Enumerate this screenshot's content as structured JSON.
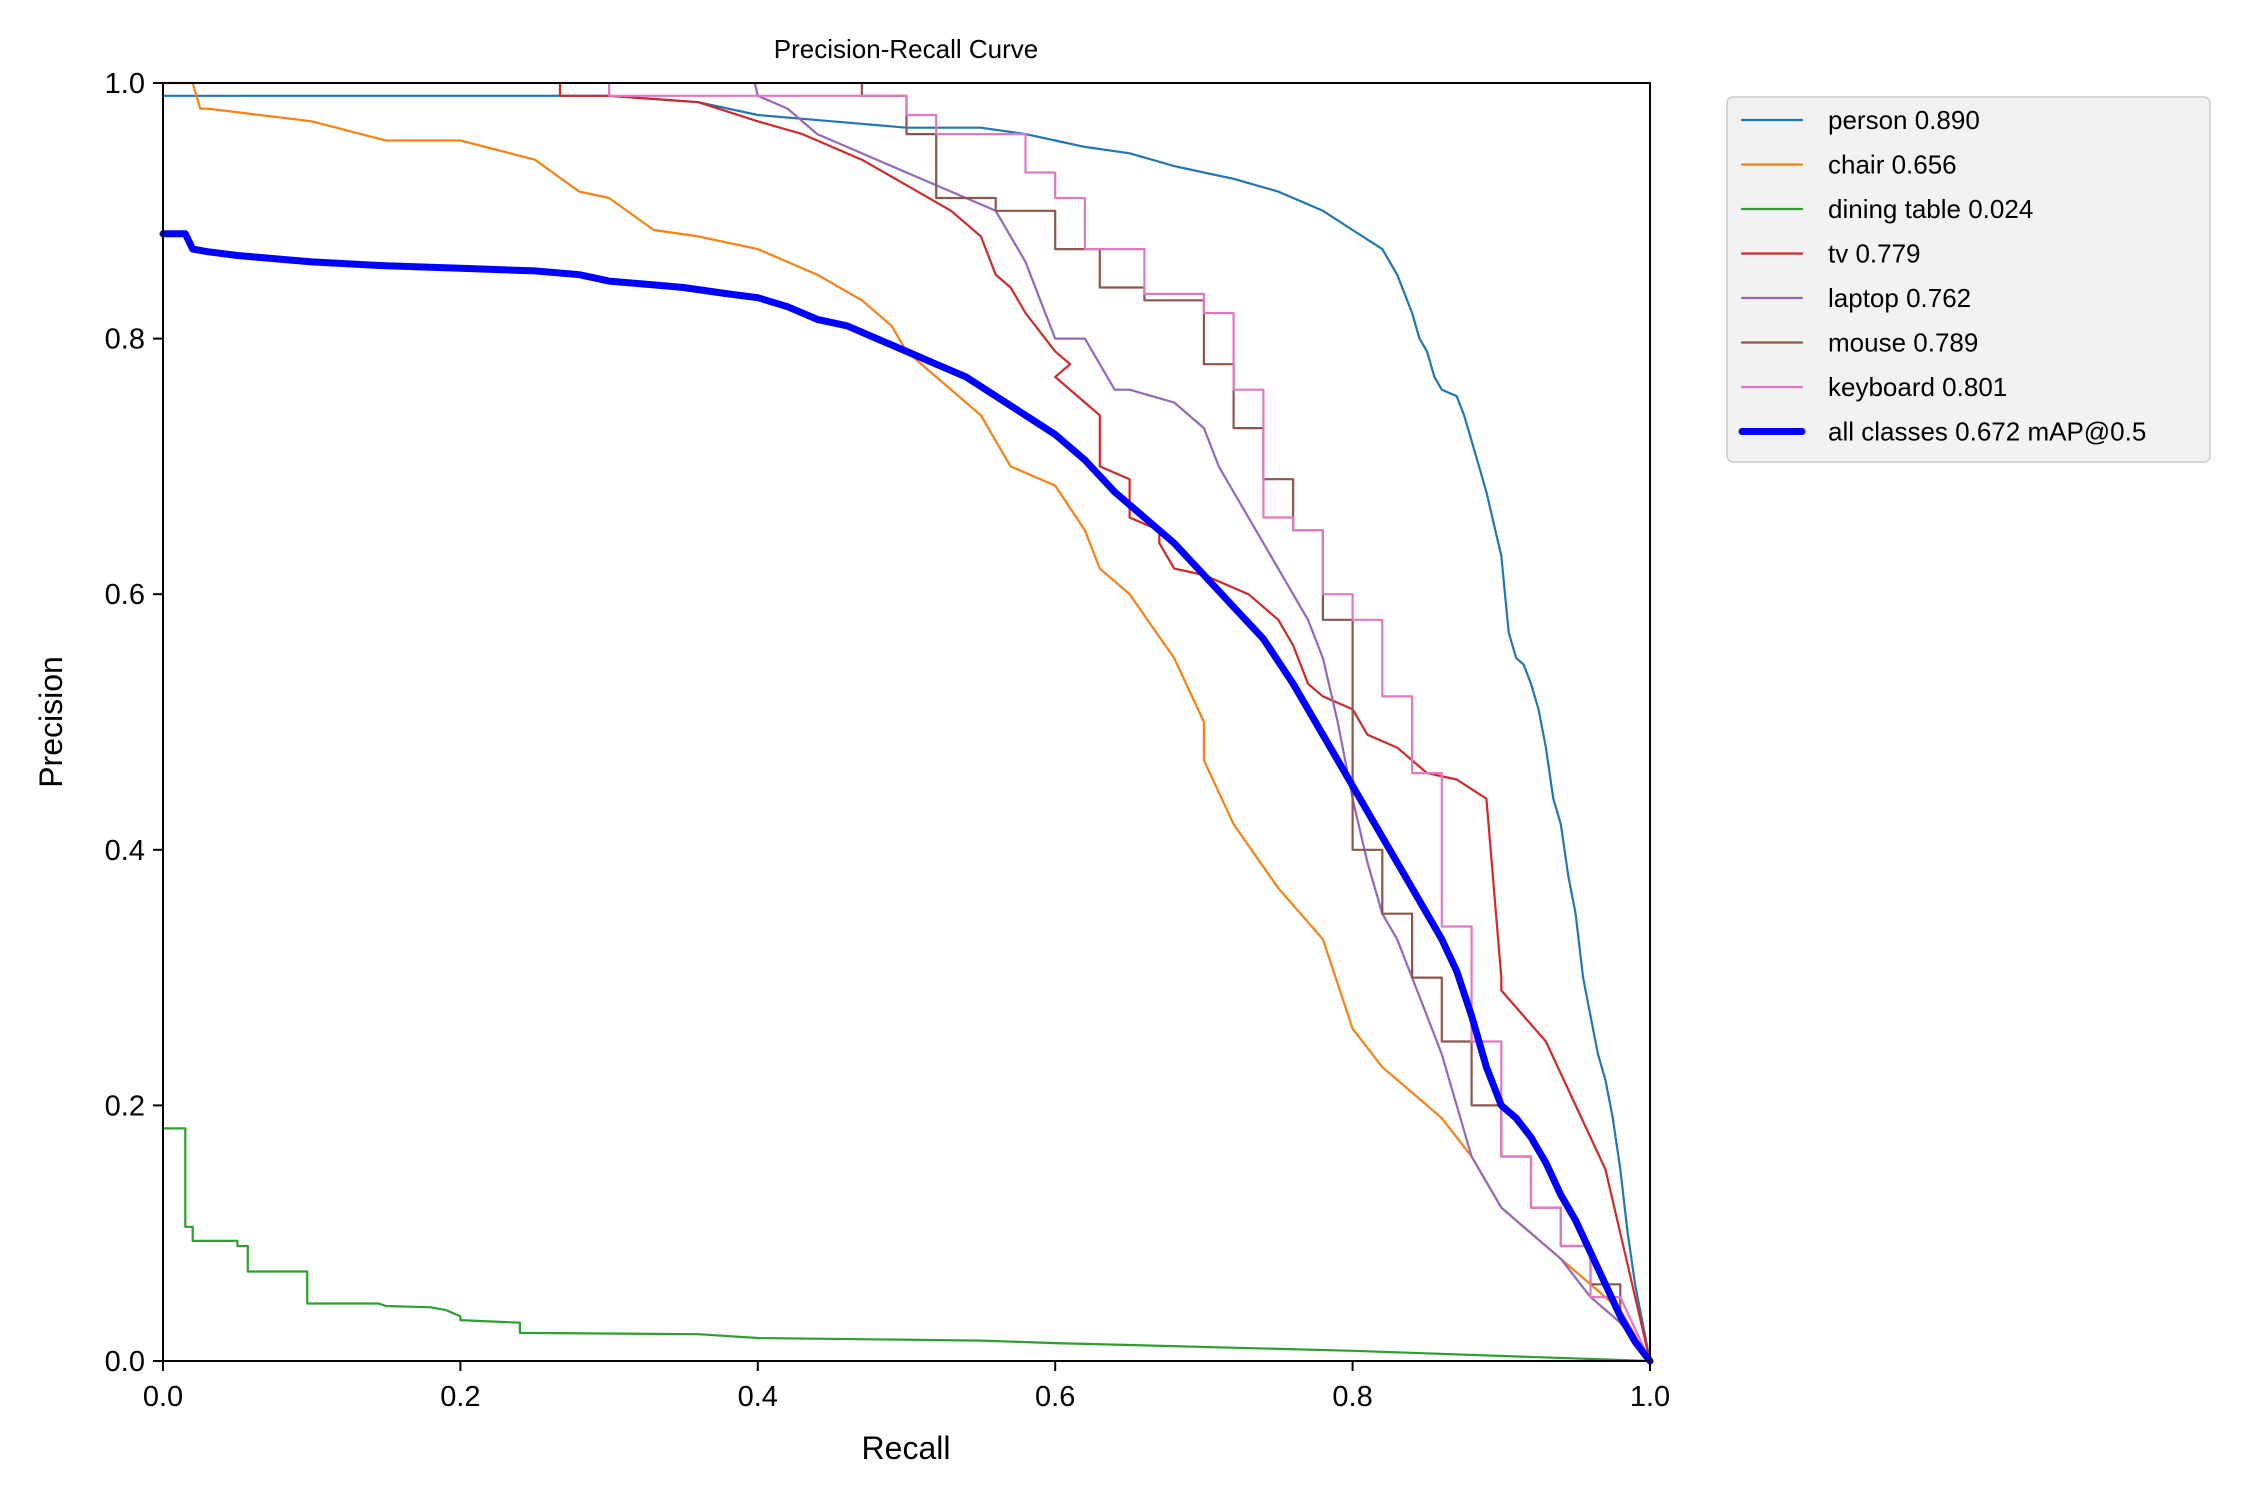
{
  "chart_data": {
    "type": "line",
    "title": "Precision-Recall Curve",
    "xlabel": "Recall",
    "ylabel": "Precision",
    "xlim": [
      0.0,
      1.0
    ],
    "ylim": [
      0.0,
      1.0
    ],
    "xticks": [
      "0.0",
      "0.2",
      "0.4",
      "0.6",
      "0.8",
      "1.0"
    ],
    "yticks": [
      "0.0",
      "0.2",
      "0.4",
      "0.6",
      "0.8",
      "1.0"
    ],
    "grid": false,
    "legend_position": "outside-top-right",
    "series": [
      {
        "name": "person 0.890",
        "color": "#1f77b4",
        "bold": false,
        "x": [
          0.0,
          0.05,
          0.2,
          0.3,
          0.36,
          0.4,
          0.45,
          0.5,
          0.55,
          0.58,
          0.6,
          0.62,
          0.65,
          0.68,
          0.7,
          0.72,
          0.75,
          0.78,
          0.8,
          0.82,
          0.83,
          0.84,
          0.845,
          0.85,
          0.855,
          0.86,
          0.87,
          0.875,
          0.88,
          0.89,
          0.9,
          0.905,
          0.91,
          0.915,
          0.92,
          0.925,
          0.93,
          0.935,
          0.94,
          0.945,
          0.95,
          0.955,
          0.96,
          0.965,
          0.97,
          0.975,
          0.98,
          0.985,
          0.99,
          1.0
        ],
        "y": [
          0.99,
          0.99,
          0.99,
          0.99,
          0.985,
          0.975,
          0.97,
          0.965,
          0.965,
          0.96,
          0.955,
          0.95,
          0.945,
          0.935,
          0.93,
          0.925,
          0.915,
          0.9,
          0.885,
          0.87,
          0.85,
          0.82,
          0.8,
          0.79,
          0.77,
          0.76,
          0.755,
          0.74,
          0.72,
          0.68,
          0.63,
          0.57,
          0.55,
          0.545,
          0.53,
          0.51,
          0.48,
          0.44,
          0.42,
          0.38,
          0.35,
          0.3,
          0.27,
          0.24,
          0.22,
          0.19,
          0.15,
          0.1,
          0.06,
          0.0
        ]
      },
      {
        "name": "chair 0.656",
        "color": "#ff7f0e",
        "bold": false,
        "x": [
          0.0,
          0.02,
          0.025,
          0.03,
          0.1,
          0.15,
          0.2,
          0.25,
          0.28,
          0.3,
          0.33,
          0.36,
          0.4,
          0.44,
          0.47,
          0.49,
          0.5,
          0.52,
          0.55,
          0.57,
          0.6,
          0.62,
          0.63,
          0.65,
          0.68,
          0.7,
          0.7,
          0.72,
          0.75,
          0.78,
          0.8,
          0.82,
          0.84,
          0.86,
          0.88,
          0.9,
          0.92,
          0.94,
          0.96,
          0.98,
          1.0
        ],
        "y": [
          1.0,
          1.0,
          0.98,
          0.98,
          0.97,
          0.955,
          0.955,
          0.94,
          0.915,
          0.91,
          0.885,
          0.88,
          0.87,
          0.85,
          0.83,
          0.81,
          0.79,
          0.77,
          0.74,
          0.7,
          0.685,
          0.65,
          0.62,
          0.6,
          0.55,
          0.5,
          0.47,
          0.42,
          0.37,
          0.33,
          0.26,
          0.23,
          0.21,
          0.19,
          0.16,
          0.12,
          0.1,
          0.08,
          0.06,
          0.04,
          0.0
        ]
      },
      {
        "name": "dining table 0.024",
        "color": "#2ca02c",
        "bold": false,
        "x": [
          0.0,
          0.015,
          0.015,
          0.02,
          0.02,
          0.05,
          0.05,
          0.057,
          0.057,
          0.097,
          0.097,
          0.145,
          0.15,
          0.18,
          0.19,
          0.2,
          0.2,
          0.24,
          0.24,
          0.36,
          0.4,
          0.55,
          0.6,
          0.8,
          1.0
        ],
        "y": [
          0.182,
          0.182,
          0.105,
          0.105,
          0.094,
          0.094,
          0.09,
          0.09,
          0.07,
          0.07,
          0.045,
          0.045,
          0.043,
          0.042,
          0.04,
          0.035,
          0.032,
          0.03,
          0.022,
          0.021,
          0.018,
          0.016,
          0.014,
          0.008,
          0.0
        ]
      },
      {
        "name": "tv 0.779",
        "color": "#d62728",
        "bold": false,
        "x": [
          0.267,
          0.267,
          0.3,
          0.36,
          0.4,
          0.43,
          0.47,
          0.5,
          0.53,
          0.55,
          0.56,
          0.57,
          0.58,
          0.6,
          0.61,
          0.6,
          0.62,
          0.63,
          0.63,
          0.65,
          0.65,
          0.67,
          0.67,
          0.68,
          0.7,
          0.73,
          0.75,
          0.76,
          0.77,
          0.78,
          0.8,
          0.81,
          0.83,
          0.84,
          0.85,
          0.87,
          0.89,
          0.9,
          0.9,
          0.93,
          0.95,
          0.97,
          0.98,
          1.0
        ],
        "y": [
          1.0,
          0.99,
          0.99,
          0.985,
          0.97,
          0.96,
          0.94,
          0.92,
          0.9,
          0.88,
          0.85,
          0.84,
          0.82,
          0.79,
          0.78,
          0.77,
          0.75,
          0.74,
          0.7,
          0.69,
          0.66,
          0.65,
          0.64,
          0.62,
          0.615,
          0.6,
          0.58,
          0.56,
          0.53,
          0.52,
          0.51,
          0.49,
          0.48,
          0.47,
          0.46,
          0.455,
          0.44,
          0.3,
          0.29,
          0.25,
          0.2,
          0.15,
          0.1,
          0.0
        ]
      },
      {
        "name": "laptop 0.762",
        "color": "#9467bd",
        "bold": false,
        "x": [
          0.398,
          0.4,
          0.42,
          0.44,
          0.46,
          0.48,
          0.5,
          0.52,
          0.54,
          0.56,
          0.57,
          0.58,
          0.59,
          0.6,
          0.62,
          0.63,
          0.64,
          0.65,
          0.68,
          0.7,
          0.71,
          0.72,
          0.73,
          0.74,
          0.76,
          0.77,
          0.78,
          0.79,
          0.8,
          0.81,
          0.82,
          0.83,
          0.84,
          0.85,
          0.86,
          0.87,
          0.88,
          0.89,
          0.9,
          0.92,
          0.94,
          0.96,
          0.98,
          1.0
        ],
        "y": [
          1.0,
          0.99,
          0.98,
          0.96,
          0.95,
          0.94,
          0.93,
          0.92,
          0.91,
          0.9,
          0.88,
          0.86,
          0.83,
          0.8,
          0.8,
          0.78,
          0.76,
          0.76,
          0.75,
          0.73,
          0.7,
          0.68,
          0.66,
          0.64,
          0.6,
          0.58,
          0.55,
          0.5,
          0.44,
          0.39,
          0.35,
          0.33,
          0.3,
          0.27,
          0.24,
          0.2,
          0.16,
          0.14,
          0.12,
          0.1,
          0.08,
          0.05,
          0.03,
          0.0
        ]
      },
      {
        "name": "mouse 0.789",
        "color": "#8c564b",
        "bold": false,
        "x": [
          0.47,
          0.47,
          0.5,
          0.5,
          0.52,
          0.52,
          0.56,
          0.56,
          0.6,
          0.6,
          0.63,
          0.63,
          0.66,
          0.66,
          0.7,
          0.7,
          0.72,
          0.72,
          0.74,
          0.74,
          0.76,
          0.76,
          0.78,
          0.78,
          0.8,
          0.8,
          0.82,
          0.82,
          0.84,
          0.84,
          0.86,
          0.86,
          0.88,
          0.88,
          0.9,
          0.9,
          0.92,
          0.92,
          0.94,
          0.94,
          0.96,
          0.96,
          0.98,
          0.98,
          1.0
        ],
        "y": [
          1.0,
          0.99,
          0.99,
          0.96,
          0.96,
          0.91,
          0.91,
          0.9,
          0.9,
          0.87,
          0.87,
          0.84,
          0.84,
          0.83,
          0.83,
          0.78,
          0.78,
          0.73,
          0.73,
          0.69,
          0.69,
          0.65,
          0.65,
          0.58,
          0.58,
          0.4,
          0.4,
          0.35,
          0.35,
          0.3,
          0.3,
          0.25,
          0.25,
          0.2,
          0.2,
          0.16,
          0.16,
          0.12,
          0.12,
          0.09,
          0.09,
          0.06,
          0.06,
          0.03,
          0.0
        ]
      },
      {
        "name": "keyboard 0.801",
        "color": "#e377c2",
        "bold": false,
        "x": [
          0.3,
          0.3,
          0.5,
          0.5,
          0.52,
          0.52,
          0.58,
          0.58,
          0.6,
          0.6,
          0.62,
          0.62,
          0.66,
          0.66,
          0.7,
          0.7,
          0.72,
          0.72,
          0.74,
          0.74,
          0.76,
          0.76,
          0.78,
          0.78,
          0.8,
          0.8,
          0.82,
          0.82,
          0.84,
          0.84,
          0.86,
          0.86,
          0.88,
          0.88,
          0.9,
          0.9,
          0.92,
          0.92,
          0.94,
          0.94,
          0.96,
          0.96,
          0.98,
          1.0
        ],
        "y": [
          1.0,
          0.99,
          0.99,
          0.975,
          0.975,
          0.96,
          0.96,
          0.93,
          0.93,
          0.91,
          0.91,
          0.87,
          0.87,
          0.835,
          0.835,
          0.82,
          0.82,
          0.76,
          0.76,
          0.66,
          0.66,
          0.65,
          0.65,
          0.6,
          0.6,
          0.58,
          0.58,
          0.52,
          0.52,
          0.46,
          0.46,
          0.34,
          0.34,
          0.25,
          0.25,
          0.16,
          0.16,
          0.12,
          0.12,
          0.09,
          0.09,
          0.05,
          0.05,
          0.0
        ]
      },
      {
        "name": "all classes 0.672 mAP@0.5",
        "color": "#0000ff",
        "bold": true,
        "x": [
          0.0,
          0.015,
          0.02,
          0.03,
          0.05,
          0.1,
          0.15,
          0.2,
          0.25,
          0.28,
          0.3,
          0.33,
          0.35,
          0.38,
          0.4,
          0.42,
          0.44,
          0.46,
          0.48,
          0.5,
          0.52,
          0.54,
          0.56,
          0.58,
          0.6,
          0.62,
          0.64,
          0.66,
          0.68,
          0.7,
          0.72,
          0.74,
          0.76,
          0.78,
          0.8,
          0.82,
          0.84,
          0.86,
          0.87,
          0.88,
          0.89,
          0.9,
          0.91,
          0.92,
          0.93,
          0.94,
          0.95,
          0.96,
          0.97,
          0.98,
          0.99,
          1.0
        ],
        "y": [
          0.882,
          0.882,
          0.87,
          0.868,
          0.865,
          0.86,
          0.857,
          0.855,
          0.853,
          0.85,
          0.845,
          0.842,
          0.84,
          0.835,
          0.832,
          0.825,
          0.815,
          0.81,
          0.8,
          0.79,
          0.78,
          0.77,
          0.755,
          0.74,
          0.725,
          0.705,
          0.68,
          0.66,
          0.64,
          0.615,
          0.59,
          0.565,
          0.53,
          0.49,
          0.45,
          0.41,
          0.37,
          0.33,
          0.305,
          0.27,
          0.23,
          0.2,
          0.19,
          0.175,
          0.155,
          0.13,
          0.11,
          0.085,
          0.06,
          0.035,
          0.015,
          0.0
        ]
      }
    ]
  }
}
